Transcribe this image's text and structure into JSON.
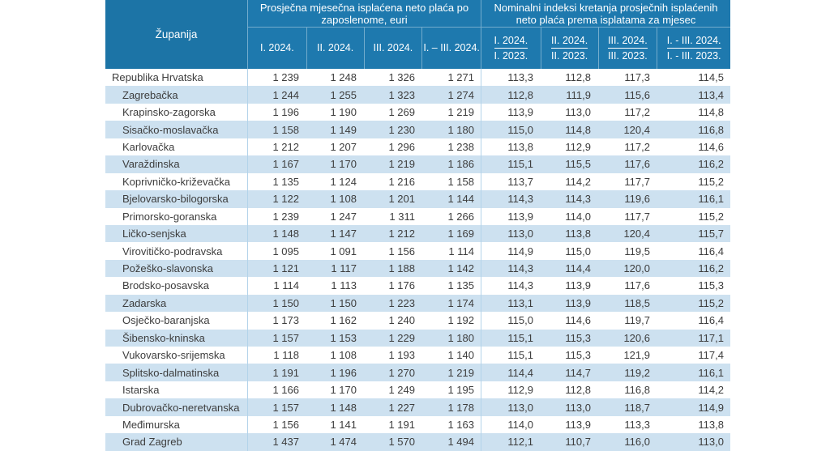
{
  "colors": {
    "header_left_bg": "#1c74a6",
    "header_bg": "#1e79ae",
    "header_text": "#ffffff",
    "stripe_bg": "#cde1f0",
    "body_text": "#3d3d3d",
    "section_border": "#b3d3ea"
  },
  "table": {
    "header": {
      "county_label": "Županija",
      "group1_title": "Prosječna mjesečna isplaćena neto plaća po zaposlenome, euri",
      "group1_cols": [
        "I. 2024.",
        "II. 2024.",
        "III. 2024.",
        "I. – III. 2024."
      ],
      "group2_title": "Nominalni indeksi kretanja prosječnih isplaćenih neto plaća prema isplatama za mjesec",
      "group2_cols": [
        {
          "num": "I. 2024.",
          "den": "I. 2023."
        },
        {
          "num": "II. 2024.",
          "den": "II. 2023."
        },
        {
          "num": "III. 2024.",
          "den": "III. 2023."
        },
        {
          "num": "I. - III. 2024.",
          "den": "I. - III. 2023."
        }
      ]
    },
    "rows": [
      {
        "county": "Republika Hrvatska",
        "indent": false,
        "values": [
          "1 239",
          "1 248",
          "1 326",
          "1 271",
          "113,3",
          "112,8",
          "117,3",
          "114,5"
        ]
      },
      {
        "county": "Zagrebačka",
        "indent": true,
        "values": [
          "1 244",
          "1 255",
          "1 323",
          "1 274",
          "112,8",
          "111,9",
          "115,6",
          "113,4"
        ]
      },
      {
        "county": "Krapinsko-zagorska",
        "indent": true,
        "values": [
          "1 196",
          "1 190",
          "1 269",
          "1 219",
          "113,9",
          "113,0",
          "117,2",
          "114,8"
        ]
      },
      {
        "county": "Sisačko-moslavačka",
        "indent": true,
        "values": [
          "1 158",
          "1 149",
          "1 230",
          "1 180",
          "115,0",
          "114,8",
          "120,4",
          "116,8"
        ]
      },
      {
        "county": "Karlovačka",
        "indent": true,
        "values": [
          "1 212",
          "1 207",
          "1 296",
          "1 238",
          "113,8",
          "112,9",
          "117,2",
          "114,6"
        ]
      },
      {
        "county": "Varaždinska",
        "indent": true,
        "values": [
          "1 167",
          "1 170",
          "1 219",
          "1 186",
          "115,1",
          "115,5",
          "117,6",
          "116,2"
        ]
      },
      {
        "county": "Koprivničko-križevačka",
        "indent": true,
        "values": [
          "1 135",
          "1 124",
          "1 216",
          "1 158",
          "113,7",
          "114,2",
          "117,7",
          "115,2"
        ]
      },
      {
        "county": "Bjelovarsko-bilogorska",
        "indent": true,
        "values": [
          "1 122",
          "1 108",
          "1 201",
          "1 144",
          "114,3",
          "114,3",
          "119,6",
          "116,1"
        ]
      },
      {
        "county": "Primorsko-goranska",
        "indent": true,
        "values": [
          "1 239",
          "1 247",
          "1 311",
          "1 266",
          "113,9",
          "114,0",
          "117,7",
          "115,2"
        ]
      },
      {
        "county": "Ličko-senjska",
        "indent": true,
        "values": [
          "1 148",
          "1 147",
          "1 212",
          "1 169",
          "113,0",
          "113,8",
          "120,4",
          "115,7"
        ]
      },
      {
        "county": "Virovitičko-podravska",
        "indent": true,
        "values": [
          "1 095",
          "1 091",
          "1 156",
          "1 114",
          "114,9",
          "115,0",
          "119,5",
          "116,4"
        ]
      },
      {
        "county": "Požeško-slavonska",
        "indent": true,
        "values": [
          "1 121",
          "1 117",
          "1 188",
          "1 142",
          "114,3",
          "114,4",
          "120,0",
          "116,2"
        ]
      },
      {
        "county": "Brodsko-posavska",
        "indent": true,
        "values": [
          "1 114",
          "1 113",
          "1 176",
          "1 135",
          "114,3",
          "113,9",
          "117,6",
          "115,3"
        ]
      },
      {
        "county": "Zadarska",
        "indent": true,
        "values": [
          "1 150",
          "1 150",
          "1 223",
          "1 174",
          "113,1",
          "113,9",
          "118,5",
          "115,2"
        ]
      },
      {
        "county": "Osječko-baranjska",
        "indent": true,
        "values": [
          "1 173",
          "1 162",
          "1 240",
          "1 192",
          "115,0",
          "114,6",
          "119,7",
          "116,4"
        ]
      },
      {
        "county": "Šibensko-kninska",
        "indent": true,
        "values": [
          "1 157",
          "1 153",
          "1 229",
          "1 180",
          "115,1",
          "115,3",
          "120,6",
          "117,1"
        ]
      },
      {
        "county": "Vukovarsko-srijemska",
        "indent": true,
        "values": [
          "1 118",
          "1 108",
          "1 193",
          "1 140",
          "115,1",
          "115,3",
          "121,9",
          "117,4"
        ]
      },
      {
        "county": "Splitsko-dalmatinska",
        "indent": true,
        "values": [
          "1 191",
          "1 196",
          "1 270",
          "1 219",
          "114,4",
          "114,7",
          "119,2",
          "116,1"
        ]
      },
      {
        "county": "Istarska",
        "indent": true,
        "values": [
          "1 166",
          "1 170",
          "1 249",
          "1 195",
          "112,9",
          "112,8",
          "116,8",
          "114,2"
        ]
      },
      {
        "county": "Dubrovačko-neretvanska",
        "indent": true,
        "values": [
          "1 157",
          "1 148",
          "1 227",
          "1 178",
          "113,0",
          "113,0",
          "118,7",
          "114,9"
        ]
      },
      {
        "county": "Međimurska",
        "indent": true,
        "values": [
          "1 156",
          "1 141",
          "1 191",
          "1 163",
          "114,0",
          "113,9",
          "113,3",
          "113,8"
        ]
      },
      {
        "county": "Grad Zagreb",
        "indent": true,
        "values": [
          "1 437",
          "1 474",
          "1 570",
          "1 494",
          "112,1",
          "110,7",
          "116,0",
          "113,0"
        ]
      }
    ]
  }
}
